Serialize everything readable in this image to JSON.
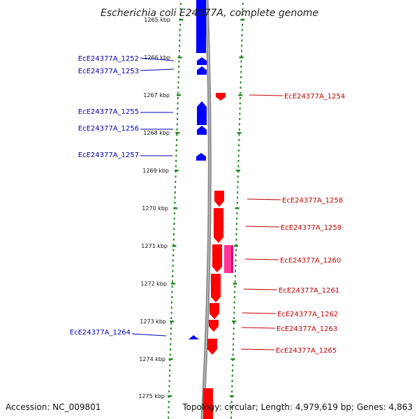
{
  "title": "Escherichia coli E24377A, complete genome",
  "footer": {
    "accession": "Accession: NC_009801",
    "topology": "Topology: circular; Length: 4,979,619 bp; Genes: 4,863"
  },
  "tick_labels": [
    "1265 kbp",
    "1266 kbp",
    "1267 kbp",
    "1268 kbp",
    "1269 kbp",
    "1270 kbp",
    "1271 kbp",
    "1272 kbp",
    "1273 kbp",
    "1274 kbp",
    "1275 kbp"
  ],
  "genes_reverse": [
    "EcE24377A_1252",
    "EcE24377A_1253",
    "EcE24377A_1255",
    "EcE24377A_1256",
    "EcE24377A_1257",
    "EcE24377A_1264"
  ],
  "genes_forward": [
    "EcE24377A_1254",
    "EcE24377A_1258",
    "EcE24377A_1259",
    "EcE24377A_1260",
    "EcE24377A_1261",
    "EcE24377A_1262",
    "EcE24377A_1263",
    "EcE24377A_1265"
  ],
  "colors": {
    "reverse": "#0000ff",
    "forward": "#ff0000",
    "highlight": "#ff3399",
    "backbone": "#888888",
    "ticks": "#228b22",
    "label_blue": "#0000b0",
    "label_red": "#c00000"
  }
}
